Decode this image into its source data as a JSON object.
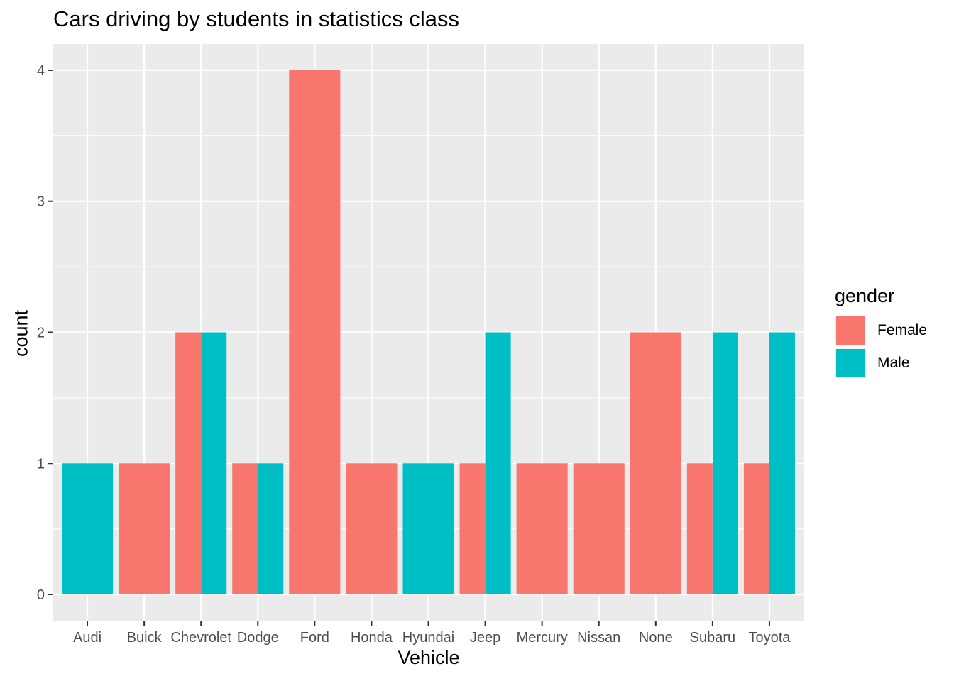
{
  "chart_data": {
    "type": "bar",
    "title": "Cars driving by students in statistics class",
    "xlabel": "Vehicle",
    "ylabel": "count",
    "categories": [
      "Audi",
      "Buick",
      "Chevrolet",
      "Dodge",
      "Ford",
      "Honda",
      "Hyundai",
      "Jeep",
      "Mercury",
      "Nissan",
      "None",
      "Subaru",
      "Toyota"
    ],
    "series": [
      {
        "name": "Female",
        "color": "#F8766D",
        "values": [
          0,
          1,
          2,
          1,
          4,
          1,
          0,
          1,
          1,
          1,
          2,
          1,
          1
        ]
      },
      {
        "name": "Male",
        "color": "#00BFC4",
        "values": [
          1,
          0,
          2,
          1,
          0,
          0,
          1,
          2,
          0,
          0,
          0,
          2,
          2
        ]
      }
    ],
    "y_ticks": [
      "0",
      "1",
      "2",
      "3",
      "4"
    ],
    "ylim": [
      -0.2,
      4.2
    ],
    "grid": true,
    "position": "dodge",
    "legend": {
      "title": "gender",
      "placement": "right"
    },
    "panel_background": "#EBEBEB"
  }
}
